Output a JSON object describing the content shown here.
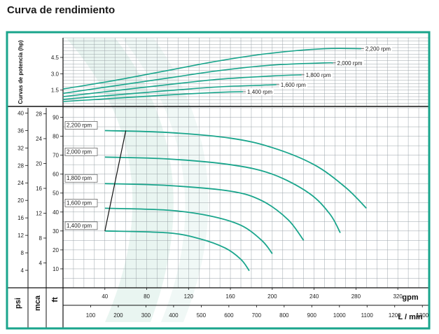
{
  "title": "Curva de rendimiento",
  "colors": {
    "frame": "#1aa58c",
    "curve": "#1aa58c",
    "grid": "#9aa3a8",
    "axis": "#111111",
    "watermark": "#e4f2ee"
  },
  "chart_data": [
    {
      "type": "line",
      "ylabel": "Curvas de potencia (hp)",
      "x_unit": "gpm",
      "xlim": [
        0,
        350
      ],
      "ylim": [
        0,
        6.3
      ],
      "yticks": [
        "1.5",
        "3.0",
        "4.5"
      ],
      "grid": true,
      "series": [
        {
          "name": "2,200 rpm",
          "x": [
            0,
            50,
            100,
            150,
            200,
            250,
            285
          ],
          "y": [
            1.6,
            2.4,
            3.3,
            4.2,
            4.9,
            5.3,
            5.3
          ]
        },
        {
          "name": "2,000 rpm",
          "x": [
            0,
            50,
            100,
            150,
            200,
            250,
            258
          ],
          "y": [
            1.2,
            1.9,
            2.6,
            3.3,
            3.8,
            4.0,
            4.0
          ]
        },
        {
          "name": "1,800 rpm",
          "x": [
            0,
            50,
            100,
            150,
            200,
            228
          ],
          "y": [
            0.9,
            1.45,
            2.0,
            2.5,
            2.8,
            2.9
          ]
        },
        {
          "name": "1,600 rpm",
          "x": [
            0,
            50,
            100,
            150,
            190,
            204
          ],
          "y": [
            0.65,
            1.05,
            1.45,
            1.8,
            1.95,
            2.0
          ]
        },
        {
          "name": "1,400 rpm",
          "x": [
            0,
            50,
            100,
            150,
            172
          ],
          "y": [
            0.45,
            0.75,
            1.05,
            1.3,
            1.35
          ]
        }
      ]
    },
    {
      "type": "line",
      "x_unit": "gpm",
      "x_unit_secondary": "L / min",
      "xlim": [
        0,
        350
      ],
      "ylim": [
        0,
        95
      ],
      "xticks": [
        "40",
        "80",
        "120",
        "160",
        "200",
        "240",
        "280",
        "320"
      ],
      "xticks_secondary": [
        "100",
        "200",
        "300",
        "400",
        "500",
        "600",
        "700",
        "800",
        "900",
        "1000",
        "1100",
        "1200",
        "1300"
      ],
      "yticks": [
        "10",
        "20",
        "30",
        "40",
        "50",
        "60",
        "70",
        "80",
        "90"
      ],
      "y_unit": "ft",
      "y2_unit": "mca",
      "y2ticks": [
        "4",
        "8",
        "12",
        "16",
        "20",
        "24",
        "28"
      ],
      "y3_unit": "psi",
      "y3ticks": [
        "4",
        "8",
        "12",
        "16",
        "20",
        "24",
        "28",
        "32",
        "36",
        "40"
      ],
      "grid": true,
      "series": [
        {
          "name": "2,200 rpm",
          "x": [
            40,
            100,
            160,
            200,
            240,
            270,
            290
          ],
          "y": [
            83,
            82,
            79,
            74,
            65,
            53,
            42
          ]
        },
        {
          "name": "2,000 rpm",
          "x": [
            40,
            100,
            160,
            200,
            235,
            255,
            265
          ],
          "y": [
            69,
            68,
            65,
            60,
            50,
            39,
            29
          ]
        },
        {
          "name": "1,800 rpm",
          "x": [
            40,
            100,
            160,
            190,
            215,
            230
          ],
          "y": [
            55,
            54,
            51,
            46,
            36,
            25
          ]
        },
        {
          "name": "1,600 rpm",
          "x": [
            40,
            100,
            140,
            170,
            190,
            200
          ],
          "y": [
            42,
            41,
            38,
            33,
            25,
            18
          ]
        },
        {
          "name": "1,400 rpm",
          "x": [
            40,
            100,
            130,
            155,
            170,
            178
          ],
          "y": [
            30,
            29,
            26,
            21,
            15,
            9
          ]
        }
      ],
      "lines": [
        {
          "x": [
            40,
            60
          ],
          "y": [
            30,
            83
          ]
        }
      ]
    }
  ]
}
